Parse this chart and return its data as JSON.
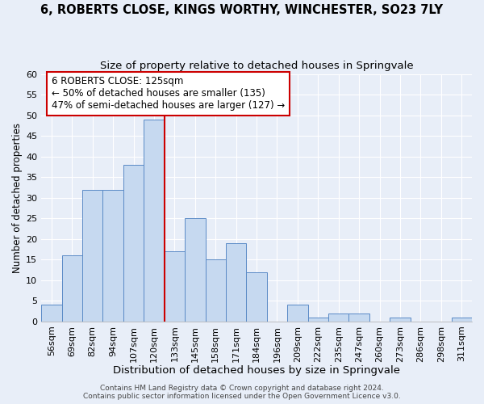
{
  "title": "6, ROBERTS CLOSE, KINGS WORTHY, WINCHESTER, SO23 7LY",
  "subtitle": "Size of property relative to detached houses in Springvale",
  "xlabel": "Distribution of detached houses by size in Springvale",
  "ylabel": "Number of detached properties",
  "bar_labels": [
    "56sqm",
    "69sqm",
    "82sqm",
    "94sqm",
    "107sqm",
    "120sqm",
    "133sqm",
    "145sqm",
    "158sqm",
    "171sqm",
    "184sqm",
    "196sqm",
    "209sqm",
    "222sqm",
    "235sqm",
    "247sqm",
    "260sqm",
    "273sqm",
    "286sqm",
    "298sqm",
    "311sqm"
  ],
  "bar_values": [
    4,
    16,
    32,
    32,
    38,
    49,
    17,
    25,
    15,
    19,
    12,
    0,
    4,
    1,
    2,
    2,
    0,
    1,
    0,
    0,
    1
  ],
  "bar_color": "#c6d9f0",
  "bar_edge_color": "#5a8ac6",
  "vline_x": 5.5,
  "vline_color": "#cc0000",
  "annotation_title": "6 ROBERTS CLOSE: 125sqm",
  "annotation_line1": "← 50% of detached houses are smaller (135)",
  "annotation_line2": "47% of semi-detached houses are larger (127) →",
  "annotation_box_color": "#ffffff",
  "annotation_box_edge": "#cc0000",
  "ylim": [
    0,
    60
  ],
  "yticks": [
    0,
    5,
    10,
    15,
    20,
    25,
    30,
    35,
    40,
    45,
    50,
    55,
    60
  ],
  "footer1": "Contains HM Land Registry data © Crown copyright and database right 2024.",
  "footer2": "Contains public sector information licensed under the Open Government Licence v3.0.",
  "title_fontsize": 10.5,
  "subtitle_fontsize": 9.5,
  "xlabel_fontsize": 9.5,
  "ylabel_fontsize": 8.5,
  "tick_fontsize": 8,
  "annotation_fontsize": 8.5,
  "footer_fontsize": 6.5,
  "bg_color": "#e8eef8"
}
